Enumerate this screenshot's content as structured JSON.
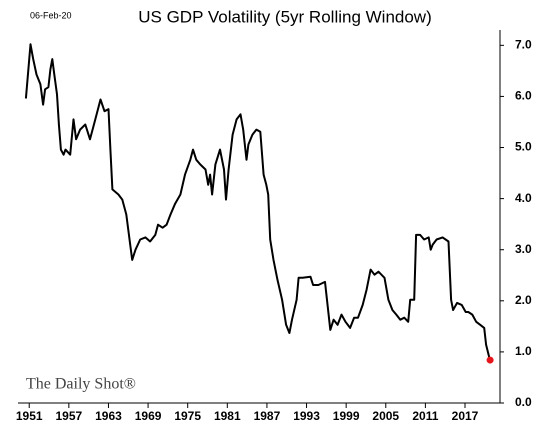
{
  "chart_data": {
    "type": "line",
    "title": "US GDP Volatility (5yr Rolling Window)",
    "date_label": "06-Feb-20",
    "watermark": "The Daily Shot®",
    "x": [
      1950.5,
      1951.2,
      1951.6,
      1952.1,
      1952.7,
      1953.1,
      1953.4,
      1953.9,
      1954.2,
      1954.5,
      1954.8,
      1955.2,
      1955.5,
      1955.8,
      1956.2,
      1956.5,
      1957.2,
      1957.7,
      1958.1,
      1958.7,
      1959.5,
      1960.2,
      1961.0,
      1961.8,
      1962.4,
      1963.0,
      1963.3,
      1963.6,
      1964.5,
      1965.1,
      1965.7,
      1966.3,
      1966.6,
      1967.1,
      1967.8,
      1968.6,
      1969.3,
      1970.1,
      1970.5,
      1971.2,
      1971.8,
      1972.4,
      1973.1,
      1973.9,
      1974.6,
      1975.4,
      1975.8,
      1976.3,
      1976.9,
      1977.7,
      1978.1,
      1978.4,
      1978.7,
      1979.2,
      1979.9,
      1980.5,
      1980.8,
      1981.2,
      1981.8,
      1982.4,
      1983.0,
      1983.4,
      1983.9,
      1984.2,
      1984.8,
      1985.4,
      1986.0,
      1986.5,
      1986.9,
      1987.2,
      1987.5,
      1988.0,
      1988.6,
      1989.3,
      1989.9,
      1990.4,
      1990.8,
      1991.5,
      1991.8,
      1992.4,
      1993.6,
      1994.0,
      1994.8,
      1995.8,
      1996.6,
      1997.1,
      1997.7,
      1998.3,
      1998.9,
      1999.6,
      2000.2,
      2000.8,
      2001.5,
      2002.1,
      2002.7,
      2003.3,
      2003.9,
      2004.8,
      2005.4,
      2006.0,
      2006.6,
      2007.2,
      2007.8,
      2008.4,
      2008.7,
      2009.3,
      2009.6,
      2010.2,
      2010.8,
      2011.5,
      2011.8,
      2012.1,
      2012.7,
      2013.6,
      2014.5,
      2014.9,
      2015.2,
      2015.8,
      2016.5,
      2017.1,
      2017.5,
      2018.1,
      2018.7,
      2019.3,
      2019.9,
      2020.2,
      2020.7,
      2020.8
    ],
    "values": [
      5.96,
      7.02,
      6.73,
      6.43,
      6.24,
      5.84,
      6.14,
      6.18,
      6.53,
      6.73,
      6.43,
      6.04,
      5.45,
      4.96,
      4.86,
      4.96,
      4.86,
      5.55,
      5.16,
      5.35,
      5.45,
      5.16,
      5.55,
      5.94,
      5.71,
      5.75,
      4.96,
      4.18,
      4.08,
      3.98,
      3.69,
      3.1,
      2.8,
      3.0,
      3.2,
      3.24,
      3.16,
      3.29,
      3.49,
      3.43,
      3.49,
      3.69,
      3.9,
      4.08,
      4.47,
      4.76,
      4.96,
      4.76,
      4.67,
      4.57,
      4.27,
      4.47,
      4.08,
      4.67,
      4.96,
      4.57,
      3.98,
      4.57,
      5.25,
      5.55,
      5.65,
      5.35,
      4.76,
      5.06,
      5.25,
      5.35,
      5.31,
      4.47,
      4.27,
      4.08,
      3.2,
      2.8,
      2.41,
      2.02,
      1.53,
      1.37,
      1.63,
      2.02,
      2.45,
      2.45,
      2.47,
      2.31,
      2.31,
      2.37,
      1.43,
      1.63,
      1.53,
      1.73,
      1.59,
      1.47,
      1.67,
      1.67,
      1.92,
      2.22,
      2.61,
      2.51,
      2.57,
      2.45,
      2.02,
      1.82,
      1.73,
      1.63,
      1.67,
      1.59,
      2.02,
      2.02,
      3.29,
      3.29,
      3.2,
      3.24,
      3.0,
      3.1,
      3.2,
      3.24,
      3.16,
      2.02,
      1.82,
      1.96,
      1.92,
      1.78,
      1.78,
      1.73,
      1.59,
      1.53,
      1.47,
      1.14,
      0.88,
      0.84
    ],
    "color": "#000000",
    "highlight_color": "#e8141c",
    "xlim": [
      1949.3,
      2022.3
    ],
    "xticks": [
      1951,
      1957,
      1963,
      1969,
      1975,
      1981,
      1987,
      1993,
      1999,
      2005,
      2011,
      2017
    ],
    "ylim": [
      0,
      7.3
    ],
    "yticks": [
      {
        "value": 0,
        "label": "0.0"
      },
      {
        "value": 1,
        "label": "1.0"
      },
      {
        "value": 2,
        "label": "2.0"
      },
      {
        "value": 3,
        "label": "3.0"
      },
      {
        "value": 4,
        "label": "4.0"
      },
      {
        "value": 5,
        "label": "5.0"
      },
      {
        "value": 6,
        "label": "6.0"
      },
      {
        "value": 7,
        "label": "7.0"
      }
    ]
  }
}
